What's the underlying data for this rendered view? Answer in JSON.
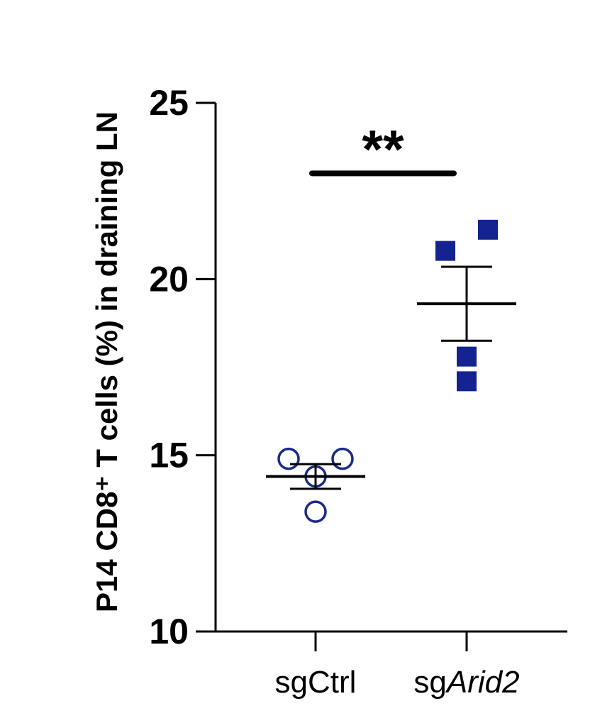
{
  "chart_data": {
    "type": "scatter",
    "ylabel": "P14 CD8⁺ T cells (%) in draining LN",
    "ylim": [
      10,
      25
    ],
    "yticks": [
      10,
      15,
      20,
      25
    ],
    "categories": [
      "sgCtrl",
      "sgArid2"
    ],
    "category_labels": [
      {
        "prefix": "sgCtrl",
        "italic": ""
      },
      {
        "prefix": "sg",
        "italic": "Arid2"
      }
    ],
    "series": [
      {
        "category": "sgCtrl",
        "marker": "open-circle",
        "color": "#1b2a8a",
        "points": [
          {
            "x_offset": -0.19,
            "y": 14.9
          },
          {
            "x_offset": 0.19,
            "y": 14.9
          },
          {
            "x_offset": 0.0,
            "y": 14.4
          },
          {
            "x_offset": 0.0,
            "y": 13.4
          }
        ],
        "mean": 14.4,
        "sem": 0.35
      },
      {
        "category": "sgArid2",
        "marker": "filled-square",
        "color": "#14238f",
        "points": [
          {
            "x_offset": -0.15,
            "y": 20.8
          },
          {
            "x_offset": 0.15,
            "y": 21.4
          },
          {
            "x_offset": 0.0,
            "y": 17.8
          },
          {
            "x_offset": 0.0,
            "y": 17.1
          }
        ],
        "mean": 19.3,
        "sem": 1.05
      }
    ],
    "significance": {
      "label": "**",
      "between": [
        "sgCtrl",
        "sgArid2"
      ],
      "y": 23.0
    }
  }
}
